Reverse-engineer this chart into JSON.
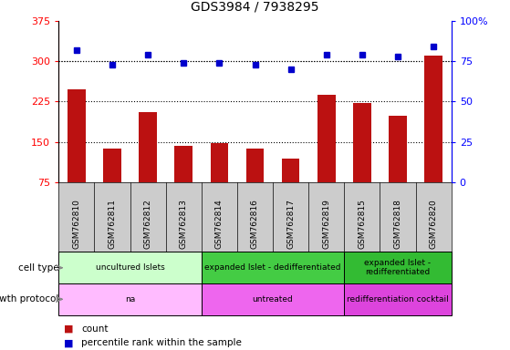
{
  "title": "GDS3984 / 7938295",
  "samples": [
    "GSM762810",
    "GSM762811",
    "GSM762812",
    "GSM762813",
    "GSM762814",
    "GSM762816",
    "GSM762817",
    "GSM762819",
    "GSM762815",
    "GSM762818",
    "GSM762820"
  ],
  "counts": [
    248,
    138,
    205,
    143,
    148,
    138,
    118,
    238,
    222,
    198,
    310
  ],
  "percentiles": [
    82,
    73,
    79,
    74,
    74,
    73,
    70,
    79,
    79,
    78,
    84
  ],
  "ylim_left": [
    75,
    375
  ],
  "ylim_right": [
    0,
    100
  ],
  "yticks_left": [
    75,
    150,
    225,
    300,
    375
  ],
  "yticks_right": [
    0,
    25,
    50,
    75,
    100
  ],
  "bar_color": "#bb1111",
  "dot_color": "#0000cc",
  "cell_type_groups": [
    {
      "label": "uncultured Islets",
      "start": 0,
      "end": 4,
      "color": "#ccffcc"
    },
    {
      "label": "expanded Islet - dedifferentiated",
      "start": 4,
      "end": 8,
      "color": "#44cc44"
    },
    {
      "label": "expanded Islet -\nredifferentiated",
      "start": 8,
      "end": 11,
      "color": "#33bb33"
    }
  ],
  "growth_protocol_groups": [
    {
      "label": "na",
      "start": 0,
      "end": 4,
      "color": "#ffbbff"
    },
    {
      "label": "untreated",
      "start": 4,
      "end": 8,
      "color": "#ee66ee"
    },
    {
      "label": "redifferentiation cocktail",
      "start": 8,
      "end": 11,
      "color": "#dd44dd"
    }
  ],
  "cell_type_label": "cell type",
  "growth_protocol_label": "growth protocol",
  "legend_count_label": "count",
  "legend_percentile_label": "percentile rank within the sample",
  "plot_bg": "#ffffff",
  "tick_area_bg": "#cccccc",
  "fig_bg": "#ffffff"
}
